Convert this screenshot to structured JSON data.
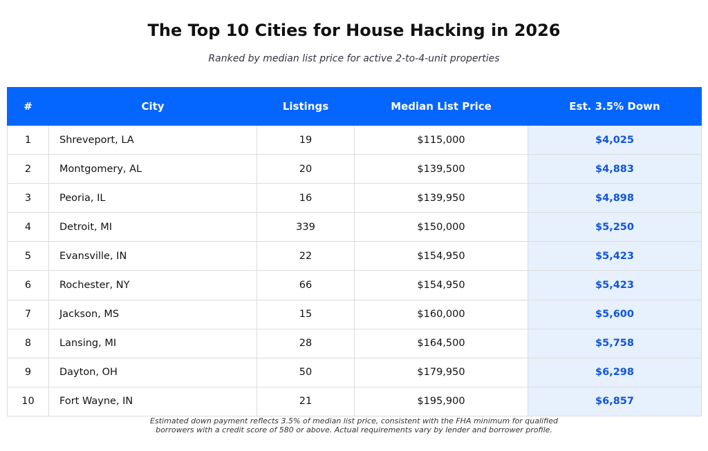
{
  "header": {
    "title": "The Top 10 Cities for House Hacking in 2026",
    "subtitle": "Ranked by median list price for active 2-to-4-unit properties"
  },
  "footnote": {
    "line1": "Estimated down payment reflects 3.5% of median list price, consistent with the FHA minimum for qualified",
    "line2": "borrowers with a credit score of 580 or above. Actual requirements vary by lender and borrower profile."
  },
  "colors": {
    "header_bg": "#0565ff",
    "header_text": "#ffffff",
    "highlight_col_bg": "#e7f0fd",
    "highlight_col_text": "#1055d8",
    "grid": "#dcdcdc"
  },
  "chart_data": {
    "type": "table",
    "title": "The Top 10 Cities for House Hacking in 2026",
    "subtitle": "Ranked by median list price for active 2-to-4-unit properties",
    "columns": [
      "#",
      "City",
      "Listings",
      "Median List Price",
      "Est. 3.5% Down"
    ],
    "rows": [
      [
        "1",
        "Shreveport, LA",
        "19",
        "$115,000",
        "$4,025"
      ],
      [
        "2",
        "Montgomery, AL",
        "20",
        "$139,500",
        "$4,883"
      ],
      [
        "3",
        "Peoria, IL",
        "16",
        "$139,950",
        "$4,898"
      ],
      [
        "4",
        "Detroit, MI",
        "339",
        "$150,000",
        "$5,250"
      ],
      [
        "5",
        "Evansville, IN",
        "22",
        "$154,950",
        "$5,423"
      ],
      [
        "6",
        "Rochester, NY",
        "66",
        "$154,950",
        "$5,423"
      ],
      [
        "7",
        "Jackson, MS",
        "15",
        "$160,000",
        "$5,600"
      ],
      [
        "8",
        "Lansing, MI",
        "28",
        "$164,500",
        "$5,758"
      ],
      [
        "9",
        "Dayton, OH",
        "50",
        "$179,950",
        "$6,298"
      ],
      [
        "10",
        "Fort Wayne, IN",
        "21",
        "$195,900",
        "$6,857"
      ]
    ]
  }
}
